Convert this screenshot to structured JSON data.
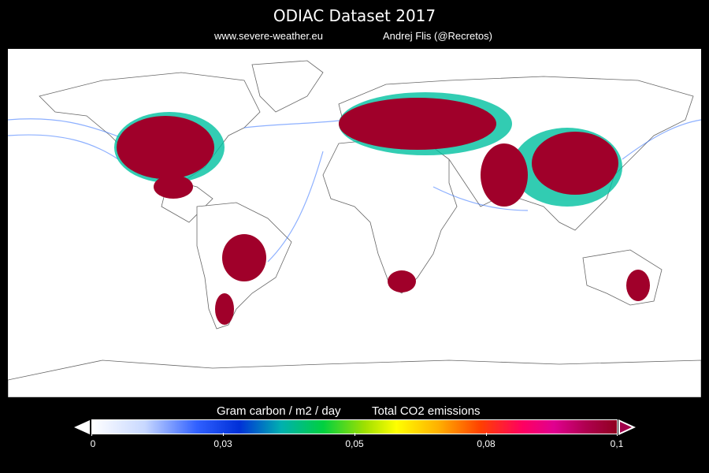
{
  "header": {
    "title": "ODIAC Dataset  2017",
    "site": "www.severe-weather.eu",
    "author": "Andrej Flis (@Recretos)"
  },
  "colorbar": {
    "unit_label": "Gram carbon / m2 / day",
    "variable_label": "Total CO2 emissions",
    "ticks": [
      "0",
      "0,03",
      "0,05",
      "0,08",
      "0,1"
    ],
    "colors": [
      "#ffffff",
      "#3060ff",
      "#00d040",
      "#ffff00",
      "#ff0060",
      "#900020"
    ]
  },
  "map": {
    "land_outline_color": "#555555",
    "high_emission_color": "#a0002a",
    "shipping_lane_color": "#3070ff"
  }
}
